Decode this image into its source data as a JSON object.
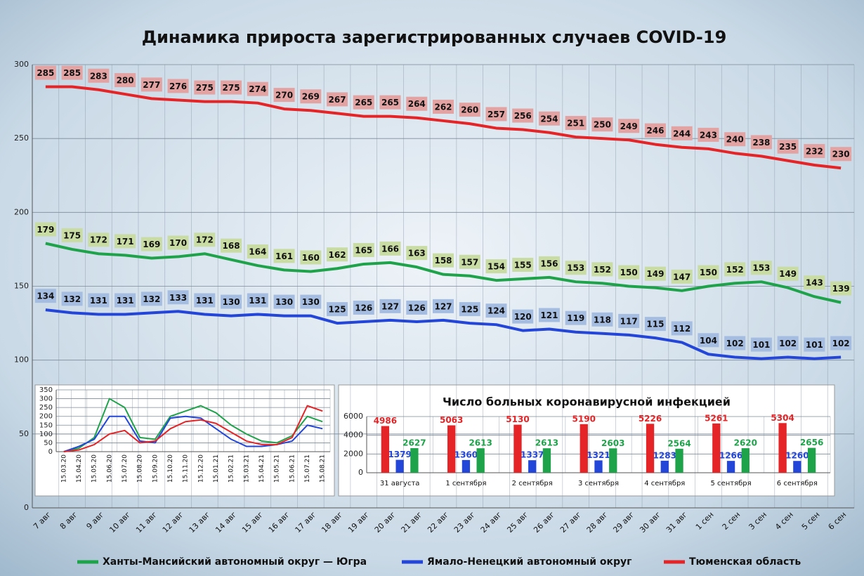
{
  "chart_data": [
    {
      "type": "line",
      "title": "Динамика прироста зарегистрированных случаев COVID-19",
      "categories": [
        "7 авг",
        "8 авг",
        "9 авг",
        "10 авг",
        "11 авг",
        "12 авг",
        "13 авг",
        "14 авг",
        "15 авг",
        "16 авг",
        "17 авг",
        "18 авг",
        "19 авг",
        "20 авг",
        "21 авг",
        "22 авг",
        "23 авг",
        "24 авг",
        "25 авг",
        "26 авг",
        "27 авг",
        "28 авг",
        "29 авг",
        "30 авг",
        "31 авг",
        "1 сен",
        "2 сен",
        "3 сен",
        "4 сен",
        "5 сен",
        "6 сен"
      ],
      "series": [
        {
          "name": "Ханты-Мансийский автономный округ — Югра",
          "color": "#1fa34a",
          "label_color": "#c8dca4",
          "values": [
            179,
            175,
            172,
            171,
            169,
            170,
            172,
            168,
            164,
            161,
            160,
            162,
            165,
            166,
            163,
            158,
            157,
            154,
            155,
            156,
            153,
            152,
            150,
            149,
            147,
            150,
            152,
            153,
            149,
            143,
            139
          ]
        },
        {
          "name": "Ямало-Ненецкий автономный округ",
          "color": "#2346d8",
          "label_color": "#a6bde2",
          "values": [
            134,
            132,
            131,
            131,
            132,
            133,
            131,
            130,
            131,
            130,
            130,
            125,
            126,
            127,
            126,
            127,
            125,
            124,
            120,
            121,
            119,
            118,
            117,
            115,
            112,
            104,
            102,
            101,
            102,
            101,
            102
          ]
        },
        {
          "name": "Тюменская область",
          "color": "#e42426",
          "label_color": "#e3a3a3",
          "values": [
            285,
            285,
            283,
            280,
            277,
            276,
            275,
            275,
            274,
            270,
            269,
            267,
            265,
            265,
            264,
            262,
            260,
            257,
            256,
            254,
            251,
            250,
            249,
            246,
            244,
            243,
            240,
            238,
            235,
            232,
            230
          ]
        }
      ],
      "ylim": [
        0,
        300
      ],
      "yticks": [
        0,
        50,
        100,
        150,
        200,
        250,
        300
      ],
      "grid": true,
      "legend": "bottom"
    },
    {
      "type": "line",
      "categories": [
        "15.03.20",
        "15.04.20",
        "15.05.20",
        "15.06.20",
        "15.07.20",
        "15.08.20",
        "15.09.20",
        "15.10.20",
        "15.11.20",
        "15.12.20",
        "15.01.21",
        "15.02.21",
        "15.03.21",
        "15.04.21",
        "15.05.21",
        "15.06.21",
        "15.07.21",
        "15.08.21"
      ],
      "series": [
        {
          "color": "#1fa34a",
          "values": [
            0,
            20,
            80,
            300,
            250,
            80,
            70,
            200,
            230,
            260,
            220,
            150,
            100,
            60,
            50,
            90,
            200,
            170
          ]
        },
        {
          "color": "#2346d8",
          "values": [
            0,
            30,
            70,
            200,
            200,
            60,
            50,
            190,
            200,
            190,
            130,
            70,
            30,
            30,
            40,
            60,
            150,
            130
          ]
        },
        {
          "color": "#e42426",
          "values": [
            0,
            10,
            40,
            100,
            120,
            50,
            60,
            130,
            170,
            180,
            160,
            110,
            60,
            40,
            40,
            80,
            260,
            230
          ]
        }
      ],
      "ylim": [
        0,
        350
      ],
      "yticks": [
        0,
        50,
        100,
        150,
        200,
        250,
        300,
        350
      ],
      "grid": true
    },
    {
      "type": "bar",
      "title": "Число больных  коронавирусной  инфекцией",
      "categories": [
        "31 августа",
        "1 сентября",
        "2 сентября",
        "3 сентября",
        "4 сентября",
        "5 сентября",
        "6 сентября"
      ],
      "series": [
        {
          "color": "#e42426",
          "values": [
            4986,
            5063,
            5130,
            5190,
            5226,
            5261,
            5304
          ]
        },
        {
          "color": "#2346d8",
          "values": [
            1379,
            1360,
            1337,
            1321,
            1283,
            1266,
            1260
          ]
        },
        {
          "color": "#1fa34a",
          "values": [
            2627,
            2613,
            2613,
            2603,
            2564,
            2620,
            2656
          ]
        }
      ],
      "ylim": [
        0,
        6000
      ],
      "yticks": [
        0,
        2000,
        4000,
        6000
      ],
      "grid": true
    }
  ]
}
